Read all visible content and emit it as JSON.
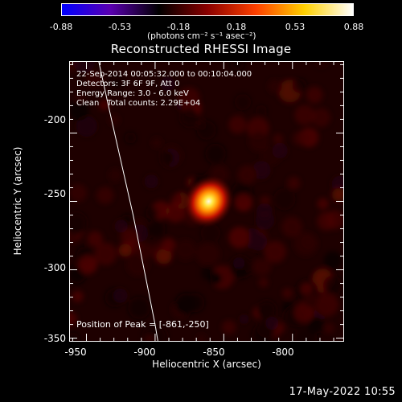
{
  "colorbar": {
    "ticks": [
      "-0.88",
      "-0.53",
      "-0.18",
      "0.18",
      "0.53",
      "0.88"
    ],
    "units": "(photons cm⁻² s⁻¹ asec⁻²)",
    "colors": [
      "#0000ff",
      "#5a00b0",
      "#000000",
      "#8a0000",
      "#ff4000",
      "#ffd000",
      "#ffffff"
    ]
  },
  "title": "Reconstructed RHESSI Image",
  "annotations": {
    "time_range": "22-Sep-2014 00:05:32.000 to 00:10:04.000",
    "detectors": "Detectors: 3F 6F 9F, Att 0",
    "energy": "Energy Range: 3.0 - 6.0 keV",
    "method": "Clean",
    "counts": "Total counts: 2.29E+04",
    "peak": "Position of Peak = [-861,-250]"
  },
  "axes": {
    "xlabel": "Heliocentric X (arcsec)",
    "ylabel": "Heliocentric Y (arcsec)",
    "xticks": [
      "-950",
      "-900",
      "-850",
      "-800"
    ],
    "yticks": [
      "-200",
      "-250",
      "-300",
      "-350"
    ]
  },
  "chart_data": {
    "type": "heatmap",
    "title": "Reconstructed RHESSI Image",
    "xlabel": "Heliocentric X (arcsec)",
    "ylabel": "Heliocentric Y (arcsec)",
    "xlim": [
      -962,
      -763
    ],
    "ylim": [
      -352,
      -148
    ],
    "xticks": [
      -950,
      -900,
      -850,
      -800
    ],
    "yticks": [
      -200,
      -250,
      -300,
      -350
    ],
    "peak_position": [
      -861,
      -250
    ],
    "value_range": [
      -0.88,
      0.88
    ],
    "limb_curve": [
      [
        -941,
        -148
      ],
      [
        -934,
        -180
      ],
      [
        -925,
        -220
      ],
      [
        -916,
        -260
      ],
      [
        -908,
        -300
      ],
      [
        -900,
        -340
      ],
      [
        -898,
        -352
      ]
    ]
  },
  "timestamp": "17-May-2022 10:55"
}
